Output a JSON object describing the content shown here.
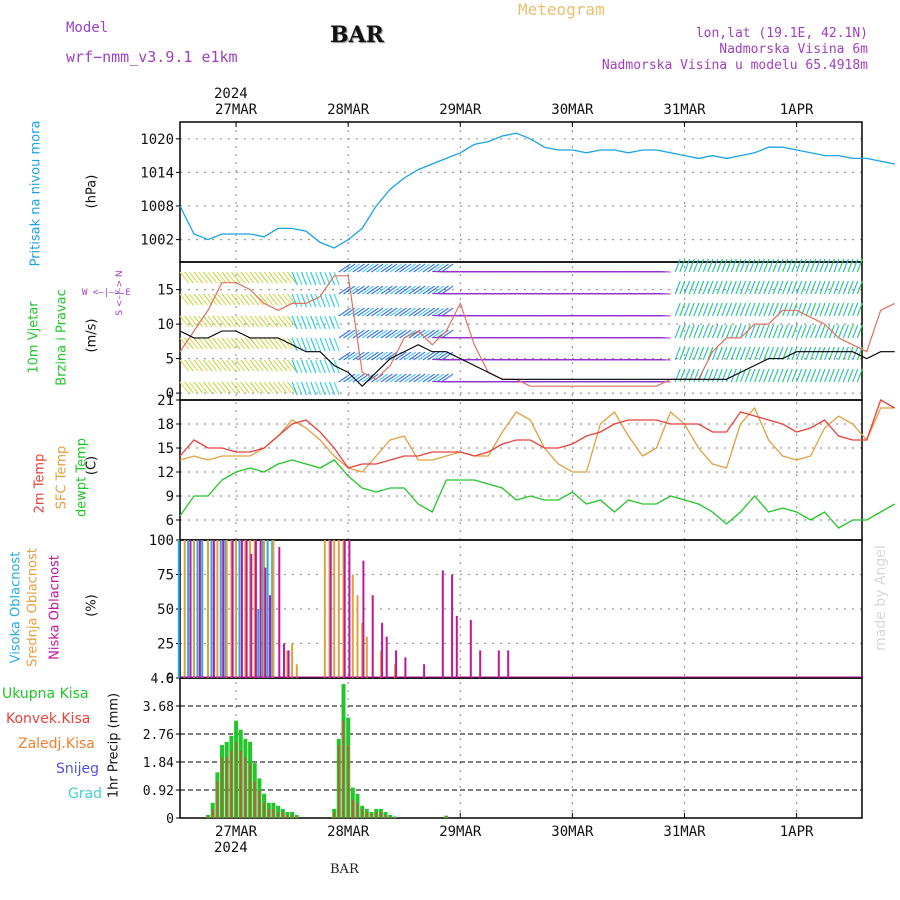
{
  "header": {
    "model_label": "Model",
    "model_name": "wrf−nmm_v3.9.1  e1km",
    "station": "BAR",
    "meteogram_label": "Meteogram",
    "coords": "lon,lat (19.1E, 42.1N)",
    "elevation": "Nadmorska Visina 6m",
    "model_elevation": "Nadmorska Visina u modelu 65.4918m",
    "watermark": "made by Angel",
    "footer_station": "BAR",
    "year_top": "2024",
    "year_bottom": "2024"
  },
  "colors": {
    "pressure": "#1aa3e8",
    "temp2m": "#e8413c",
    "sfc_temp": "#e0a040",
    "dewpt": "#22c62a",
    "high_cloud": "#27a9e1",
    "mid_cloud": "#e0a040",
    "low_cloud": "#c0169c",
    "total_precip": "#22c62a",
    "conv_precip": "#e8413c",
    "frozen": "#f08030",
    "snow": "#5050e0",
    "graupel": "#40d0d0",
    "model_label": "#a040c0",
    "title_orange": "#e8c070"
  },
  "chart_data": [
    {
      "type": "line",
      "panel": "pressure",
      "ylabel_name": "Pritisak na nivou mora",
      "ylabel_unit": "(hPa)",
      "ylim": [
        998,
        1023
      ],
      "yticks": [
        1002,
        1008,
        1014,
        1020
      ],
      "x_hours": [
        0,
        3,
        6,
        9,
        12,
        15,
        18,
        21,
        24,
        27,
        30,
        33,
        36,
        39,
        42,
        45,
        48,
        51,
        54,
        57,
        60,
        63,
        66,
        69,
        72,
        75,
        78,
        81,
        84,
        87,
        90,
        93,
        96,
        99,
        102,
        105,
        108,
        111,
        114,
        117,
        120,
        123,
        126,
        129,
        132,
        135,
        138,
        141,
        144,
        147,
        150,
        153
      ],
      "series": [
        {
          "values": [
            1008,
            1003,
            1002,
            1003,
            1003,
            1003,
            1002.5,
            1004,
            1004,
            1003.5,
            1001.5,
            1000.5,
            1002,
            1004,
            1008,
            1011,
            1013,
            1014.5,
            1015.5,
            1016.5,
            1017.5,
            1019,
            1019.5,
            1020.5,
            1021,
            1020,
            1018.5,
            1018,
            1018,
            1017.5,
            1018,
            1018,
            1017.5,
            1018,
            1018,
            1017.5,
            1017,
            1016.5,
            1017,
            1016.5,
            1017,
            1017.5,
            1018.5,
            1018.5,
            1018,
            1017.5,
            1017,
            1017,
            1016.5,
            1016.5,
            1016,
            1015.5
          ]
        }
      ]
    },
    {
      "type": "line",
      "panel": "wind",
      "ylabel_name": "10m Vjetar",
      "ylabel_name2": "Brzina i Pravac",
      "ylabel_unit": "(m/s)",
      "compass": "W <–|–> E",
      "compass_v": "S <–|–> N",
      "ylim": [
        -1,
        19
      ],
      "yticks": [
        0,
        5,
        10,
        15
      ],
      "x_hours": [
        0,
        3,
        6,
        9,
        12,
        15,
        18,
        21,
        24,
        27,
        30,
        33,
        36,
        39,
        42,
        45,
        48,
        51,
        54,
        57,
        60,
        63,
        66,
        69,
        72,
        75,
        78,
        81,
        84,
        87,
        90,
        93,
        96,
        99,
        102,
        105,
        108,
        111,
        114,
        117,
        120,
        123,
        126,
        129,
        132,
        135,
        138,
        141,
        144,
        147,
        150,
        153
      ],
      "series": [
        {
          "name": "speed",
          "values": [
            9,
            8,
            8,
            9,
            9,
            8,
            8,
            8,
            7,
            6,
            6,
            4,
            3,
            1,
            3,
            5,
            6,
            7,
            6,
            6,
            5,
            4,
            3,
            2,
            2,
            2,
            2,
            2,
            2,
            2,
            2,
            2,
            2,
            2,
            2,
            2,
            2,
            2,
            2,
            2,
            3,
            4,
            5,
            5,
            6,
            6,
            6,
            6,
            6,
            5,
            6,
            6
          ]
        },
        {
          "name": "gust",
          "values": [
            6,
            9,
            12,
            16,
            16,
            15,
            13,
            12,
            13,
            13,
            14,
            17,
            17,
            3,
            2,
            4,
            8,
            9,
            7,
            9,
            13,
            7,
            3,
            2,
            2,
            1,
            1,
            1,
            1,
            1,
            1,
            1,
            1,
            1,
            1,
            2,
            2,
            2,
            6,
            8,
            8,
            10,
            10,
            12,
            12,
            11,
            10,
            8,
            7,
            6,
            12,
            13
          ]
        }
      ]
    },
    {
      "type": "line",
      "panel": "temperature",
      "ylabel_name": "2m Temp",
      "ylabel_name2": "SFC Temp",
      "ylabel_name3": "dewpt Temp",
      "ylabel_unit": "(C)",
      "ylim": [
        3.5,
        21
      ],
      "yticks": [
        6,
        9,
        12,
        15,
        18,
        21
      ],
      "x_hours": [
        0,
        3,
        6,
        9,
        12,
        15,
        18,
        21,
        24,
        27,
        30,
        33,
        36,
        39,
        42,
        45,
        48,
        51,
        54,
        57,
        60,
        63,
        66,
        69,
        72,
        75,
        78,
        81,
        84,
        87,
        90,
        93,
        96,
        99,
        102,
        105,
        108,
        111,
        114,
        117,
        120,
        123,
        126,
        129,
        132,
        135,
        138,
        141,
        144,
        147,
        150,
        153
      ],
      "series": [
        {
          "name": "2m Temp",
          "values": [
            14,
            16,
            15,
            15,
            14.5,
            14.5,
            15,
            16.5,
            18,
            18.5,
            17,
            15,
            12.5,
            13,
            13,
            13.5,
            14,
            14,
            14.5,
            14.5,
            14.5,
            14,
            14.5,
            15.5,
            16,
            16,
            15,
            15,
            15.5,
            16.5,
            17,
            18,
            18.5,
            18.5,
            18.5,
            18,
            18,
            18,
            17,
            17,
            19.5,
            19,
            18.5,
            18,
            17,
            17.5,
            18.5,
            16.5,
            16,
            16,
            21,
            20
          ]
        },
        {
          "name": "SFC Temp",
          "values": [
            13.5,
            14,
            13.5,
            14,
            14,
            14,
            15,
            16.5,
            18.5,
            17.5,
            16,
            14,
            12.5,
            12,
            14,
            16,
            16.5,
            13.5,
            13.5,
            14,
            14.5,
            14,
            14,
            17,
            19.5,
            18.5,
            15,
            13,
            12,
            12,
            18,
            19.5,
            16.5,
            14,
            15,
            19.5,
            18,
            15,
            13,
            12.5,
            18,
            20,
            16,
            14,
            13.5,
            14,
            17.5,
            19,
            18,
            16,
            20,
            20
          ]
        },
        {
          "name": "dewpt Temp",
          "values": [
            6.5,
            9,
            9,
            11,
            12,
            12.5,
            12,
            13,
            13.5,
            13,
            12.5,
            13.5,
            11.5,
            10,
            9.5,
            10,
            10,
            8,
            7,
            11,
            11,
            11,
            10.5,
            10,
            8.5,
            9,
            8.5,
            8.5,
            9.5,
            8,
            8.5,
            7,
            8.5,
            8,
            8,
            9,
            8.5,
            8,
            7,
            5.5,
            7,
            9,
            7,
            7.5,
            7,
            6,
            7,
            5,
            6,
            6,
            7,
            8
          ]
        }
      ]
    },
    {
      "type": "bar",
      "panel": "clouds",
      "ylabel_name": "Visoka Oblacnost",
      "ylabel_name2": "Srednja Oblacnost",
      "ylabel_name3": "Niska Oblacnost",
      "ylabel_unit": "(%)",
      "ylim": [
        0,
        100
      ],
      "yticks": [
        0,
        25,
        50,
        75,
        100
      ],
      "series": [
        {
          "name": "high",
          "hours": [
            0,
            2,
            4,
            5,
            7,
            9,
            10,
            13,
            17,
            18,
            19,
            20
          ],
          "values": [
            100,
            100,
            100,
            100,
            100,
            100,
            100,
            100,
            50,
            100,
            100,
            100
          ]
        },
        {
          "name": "mid",
          "hours": [
            1,
            3,
            6,
            8,
            10,
            11,
            12,
            14,
            15,
            16,
            18,
            20,
            23,
            24,
            25,
            31,
            32,
            33,
            34,
            35,
            37,
            38,
            39,
            40,
            43,
            46
          ],
          "values": [
            100,
            100,
            100,
            100,
            100,
            100,
            100,
            100,
            100,
            100,
            100,
            100,
            20,
            25,
            10,
            100,
            100,
            100,
            100,
            100,
            75,
            60,
            40,
            30,
            20,
            10
          ]
        },
        {
          "name": "low",
          "hours": [
            2,
            4,
            7,
            9,
            11,
            13,
            14,
            15,
            16,
            17,
            18,
            19,
            21,
            22,
            23,
            32,
            35,
            36,
            39,
            41,
            43,
            44,
            46,
            48,
            52,
            56,
            58,
            59,
            62,
            64,
            68,
            70
          ],
          "values": [
            100,
            100,
            100,
            100,
            100,
            100,
            100,
            90,
            100,
            100,
            80,
            60,
            95,
            25,
            20,
            100,
            100,
            100,
            85,
            60,
            40,
            30,
            20,
            15,
            10,
            78,
            75,
            45,
            42,
            20,
            20,
            20
          ]
        }
      ]
    },
    {
      "type": "bar",
      "panel": "precipitation",
      "legend": [
        "Ukupna Kisa",
        "Konvek.Kisa",
        "Zaledj.Kisa",
        "Snijeg",
        "Grad"
      ],
      "ylabel_unit": "1hr Precip (mm)",
      "ylim": [
        0,
        4.6
      ],
      "yticks": [
        "0",
        "0.92",
        "1.84",
        "2.76",
        "3.68",
        "4.6"
      ],
      "hours": [
        6,
        7,
        8,
        9,
        10,
        11,
        12,
        13,
        14,
        15,
        16,
        17,
        18,
        19,
        20,
        21,
        22,
        23,
        24,
        25,
        33,
        34,
        35,
        36,
        37,
        38,
        39,
        40,
        41,
        42,
        43,
        44,
        45,
        46,
        57
      ],
      "series": [
        {
          "name": "total",
          "values": [
            0.1,
            0.5,
            1.5,
            2.4,
            2.5,
            2.7,
            3.2,
            2.9,
            2.6,
            2.5,
            1.8,
            1.3,
            0.8,
            0.5,
            0.5,
            0.4,
            0.3,
            0.2,
            0.2,
            0.1,
            0.3,
            2.6,
            4.4,
            3.3,
            1.0,
            0.8,
            0.4,
            0.3,
            0.2,
            0.3,
            0.3,
            0.2,
            0.1,
            0.05,
            0.08
          ]
        },
        {
          "name": "convective",
          "values": [
            0.05,
            0.3,
            1.2,
            2.0,
            2.0,
            2.2,
            2.5,
            2.2,
            2.0,
            1.8,
            1.2,
            0.9,
            0.5,
            0.3,
            0.3,
            0.2,
            0.2,
            0.1,
            0.1,
            0.05,
            0.2,
            2.4,
            3.2,
            2.4,
            0.6,
            0.5,
            0.3,
            0.2,
            0.15,
            0.2,
            0.2,
            0.1,
            0.05,
            0.03,
            0.05
          ]
        }
      ]
    }
  ],
  "x_axis": {
    "top_labels": [
      "27MAR",
      "28MAR",
      "29MAR",
      "30MAR",
      "31MAR",
      "1APR"
    ],
    "bottom_labels": [
      "27MAR",
      "28MAR",
      "29MAR",
      "30MAR",
      "31MAR",
      "1APR"
    ],
    "label_hours": [
      12,
      36,
      60,
      84,
      108,
      132
    ],
    "range_hours": [
      0,
      146
    ]
  }
}
